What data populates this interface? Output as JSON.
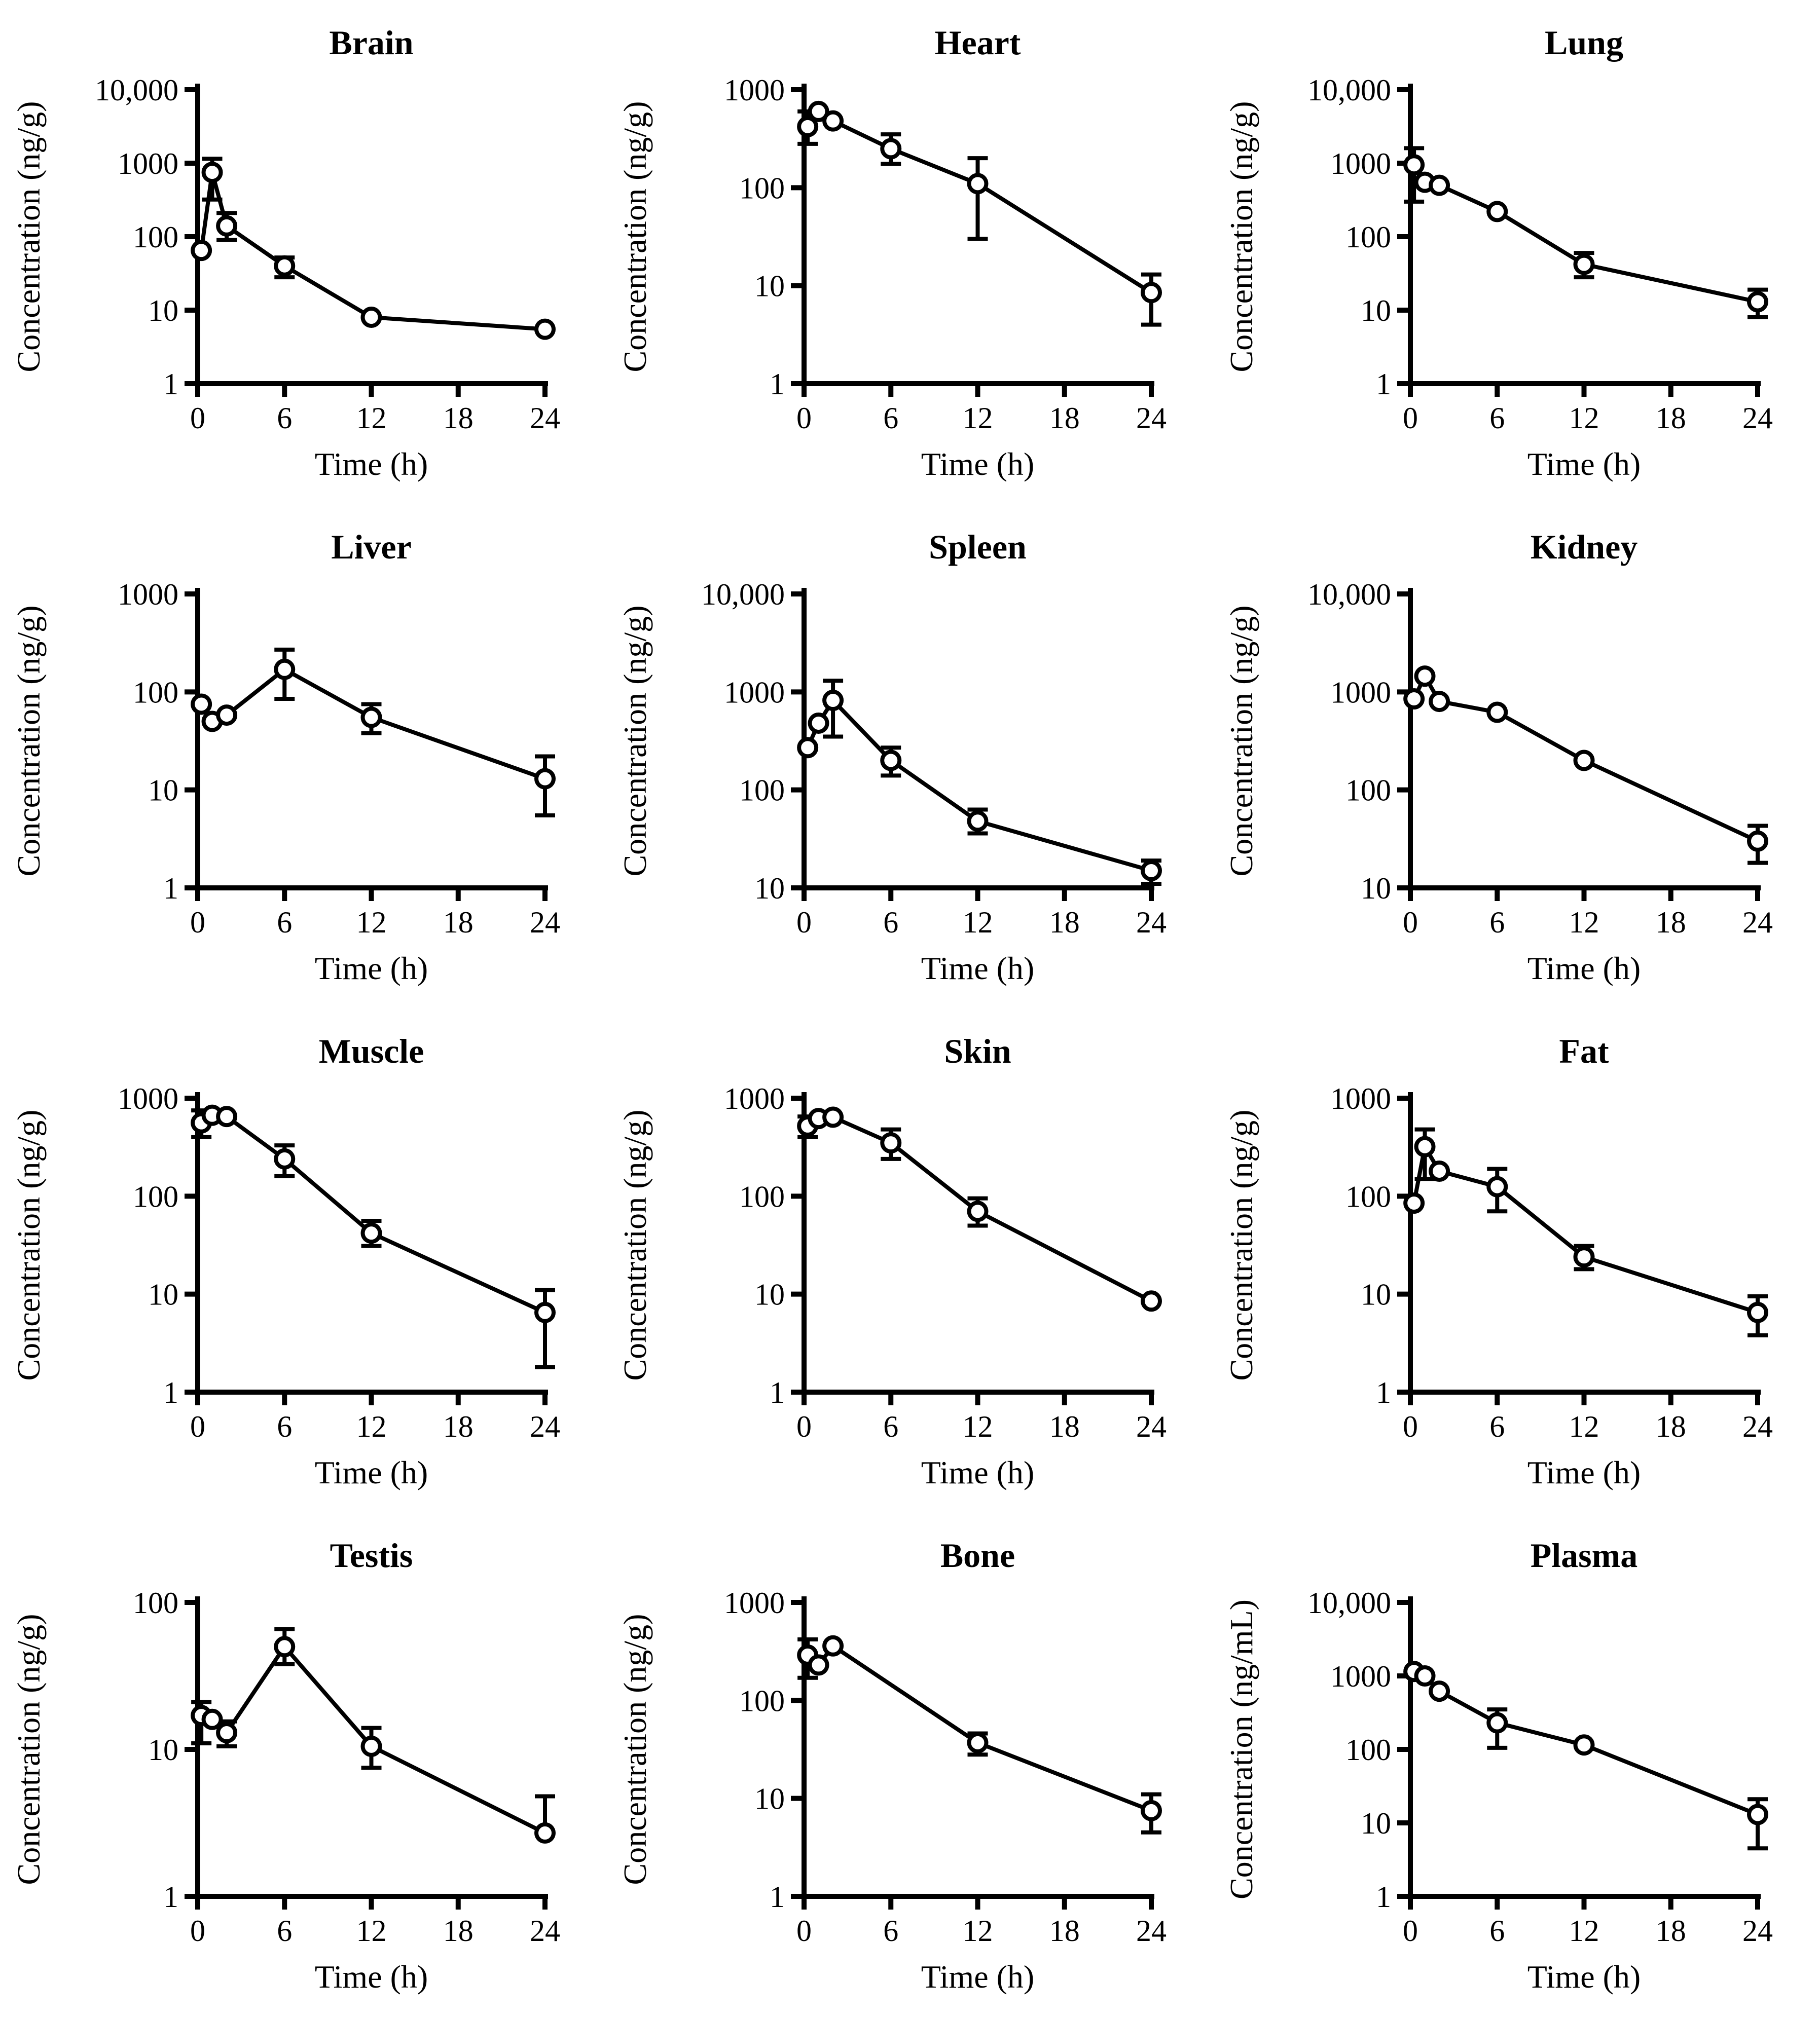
{
  "page": {
    "background": "#ffffff"
  },
  "colors": {
    "stroke": "#000000",
    "marker_fill": "#ffffff"
  },
  "chart_data": [
    {
      "type": "line",
      "title": "Brain",
      "xlabel": "Time (h)",
      "ylabel": "Concentration (ng/g)",
      "x_ticks": [
        0,
        6,
        12,
        18,
        24
      ],
      "xlim": [
        0,
        24
      ],
      "grid": false,
      "legend": "none",
      "y_tick_labels": [
        "1",
        "10",
        "100",
        "1000",
        "10,000"
      ],
      "ylim": [
        1,
        10000
      ],
      "points": [
        {
          "t": 0.25,
          "y": 65
        },
        {
          "t": 1,
          "y": 750,
          "err": [
            320,
            1150
          ]
        },
        {
          "t": 2,
          "y": 140,
          "err": [
            90,
            210
          ]
        },
        {
          "t": 6,
          "y": 40,
          "err": [
            28,
            52
          ]
        },
        {
          "t": 12,
          "y": 8
        },
        {
          "t": 24,
          "y": 5.5
        }
      ]
    },
    {
      "type": "line",
      "title": "Heart",
      "xlabel": "Time (h)",
      "ylabel": "Concentration (ng/g)",
      "x_ticks": [
        0,
        6,
        12,
        18,
        24
      ],
      "xlim": [
        0,
        24
      ],
      "grid": false,
      "legend": "none",
      "y_tick_labels": [
        "1",
        "10",
        "100",
        "1000"
      ],
      "ylim": [
        1,
        1000
      ],
      "points": [
        {
          "t": 0.25,
          "y": 420,
          "err": [
            280,
            600
          ]
        },
        {
          "t": 1,
          "y": 600
        },
        {
          "t": 2,
          "y": 480
        },
        {
          "t": 6,
          "y": 250,
          "err": [
            175,
            350
          ]
        },
        {
          "t": 12,
          "y": 110,
          "err": [
            30,
            200
          ]
        },
        {
          "t": 24,
          "y": 8.5,
          "err": [
            4,
            13
          ]
        }
      ]
    },
    {
      "type": "line",
      "title": "Lung",
      "xlabel": "Time (h)",
      "ylabel": "Concentration (ng/g)",
      "x_ticks": [
        0,
        6,
        12,
        18,
        24
      ],
      "xlim": [
        0,
        24
      ],
      "grid": false,
      "legend": "none",
      "y_tick_labels": [
        "1",
        "10",
        "100",
        "1000",
        "10,000"
      ],
      "ylim": [
        1,
        10000
      ],
      "points": [
        {
          "t": 0.25,
          "y": 950,
          "err": [
            300,
            1600
          ]
        },
        {
          "t": 1,
          "y": 550
        },
        {
          "t": 2,
          "y": 500
        },
        {
          "t": 6,
          "y": 220
        },
        {
          "t": 12,
          "y": 42,
          "err": [
            28,
            60
          ]
        },
        {
          "t": 24,
          "y": 13,
          "err": [
            8,
            19
          ]
        }
      ]
    },
    {
      "type": "line",
      "title": "Liver",
      "xlabel": "Time (h)",
      "ylabel": "Concentration (ng/g)",
      "x_ticks": [
        0,
        6,
        12,
        18,
        24
      ],
      "xlim": [
        0,
        24
      ],
      "grid": false,
      "legend": "none",
      "y_tick_labels": [
        "1",
        "10",
        "100",
        "1000"
      ],
      "ylim": [
        1,
        1000
      ],
      "points": [
        {
          "t": 0.25,
          "y": 75
        },
        {
          "t": 1,
          "y": 50
        },
        {
          "t": 2,
          "y": 58
        },
        {
          "t": 6,
          "y": 170,
          "err": [
            85,
            270
          ]
        },
        {
          "t": 12,
          "y": 55,
          "err": [
            38,
            75
          ]
        },
        {
          "t": 24,
          "y": 13,
          "err": [
            5.5,
            22
          ]
        }
      ]
    },
    {
      "type": "line",
      "title": "Spleen",
      "xlabel": "Time (h)",
      "ylabel": "Concentration (ng/g)",
      "x_ticks": [
        0,
        6,
        12,
        18,
        24
      ],
      "xlim": [
        0,
        24
      ],
      "grid": false,
      "legend": "none",
      "y_tick_labels": [
        "10",
        "100",
        "1000",
        "10,000"
      ],
      "ylim": [
        10,
        10000
      ],
      "points": [
        {
          "t": 0.25,
          "y": 270
        },
        {
          "t": 1,
          "y": 480
        },
        {
          "t": 2,
          "y": 820,
          "err": [
            350,
            1300
          ]
        },
        {
          "t": 6,
          "y": 200,
          "err": [
            140,
            270
          ]
        },
        {
          "t": 12,
          "y": 48,
          "err": [
            36,
            63
          ]
        },
        {
          "t": 24,
          "y": 15,
          "err": [
            11,
            19
          ]
        }
      ]
    },
    {
      "type": "line",
      "title": "Kidney",
      "xlabel": "Time (h)",
      "ylabel": "Concentration (ng/g)",
      "x_ticks": [
        0,
        6,
        12,
        18,
        24
      ],
      "xlim": [
        0,
        24
      ],
      "grid": false,
      "legend": "none",
      "y_tick_labels": [
        "10",
        "100",
        "1000",
        "10,000"
      ],
      "ylim": [
        10,
        10000
      ],
      "points": [
        {
          "t": 0.25,
          "y": 850
        },
        {
          "t": 1,
          "y": 1450
        },
        {
          "t": 2,
          "y": 800
        },
        {
          "t": 6,
          "y": 620
        },
        {
          "t": 12,
          "y": 200
        },
        {
          "t": 24,
          "y": 30,
          "err": [
            18,
            43
          ]
        }
      ]
    },
    {
      "type": "line",
      "title": "Muscle",
      "xlabel": "Time (h)",
      "ylabel": "Concentration (ng/g)",
      "x_ticks": [
        0,
        6,
        12,
        18,
        24
      ],
      "xlim": [
        0,
        24
      ],
      "grid": false,
      "legend": "none",
      "y_tick_labels": [
        "1",
        "10",
        "100",
        "1000"
      ],
      "ylim": [
        1,
        1000
      ],
      "points": [
        {
          "t": 0.25,
          "y": 560,
          "err": [
            400,
            750
          ]
        },
        {
          "t": 1,
          "y": 670
        },
        {
          "t": 2,
          "y": 650
        },
        {
          "t": 6,
          "y": 240,
          "err": [
            160,
            330
          ]
        },
        {
          "t": 12,
          "y": 42,
          "err": [
            31,
            56
          ]
        },
        {
          "t": 24,
          "y": 6.5,
          "err": [
            1.8,
            11
          ]
        }
      ]
    },
    {
      "type": "line",
      "title": "Skin",
      "xlabel": "Time (h)",
      "ylabel": "Concentration (ng/g)",
      "x_ticks": [
        0,
        6,
        12,
        18,
        24
      ],
      "xlim": [
        0,
        24
      ],
      "grid": false,
      "legend": "none",
      "y_tick_labels": [
        "1",
        "10",
        "100",
        "1000"
      ],
      "ylim": [
        1,
        1000
      ],
      "points": [
        {
          "t": 0.25,
          "y": 520,
          "err": [
            400,
            650
          ]
        },
        {
          "t": 1,
          "y": 620
        },
        {
          "t": 2,
          "y": 640
        },
        {
          "t": 6,
          "y": 350,
          "err": [
            240,
            480
          ]
        },
        {
          "t": 12,
          "y": 70,
          "err": [
            50,
            95
          ]
        },
        {
          "t": 24,
          "y": 8.5
        }
      ]
    },
    {
      "type": "line",
      "title": "Fat",
      "xlabel": "Time (h)",
      "ylabel": "Concentration (ng/g)",
      "x_ticks": [
        0,
        6,
        12,
        18,
        24
      ],
      "xlim": [
        0,
        24
      ],
      "grid": false,
      "legend": "none",
      "y_tick_labels": [
        "1",
        "10",
        "100",
        "1000"
      ],
      "ylim": [
        1,
        1000
      ],
      "points": [
        {
          "t": 0.25,
          "y": 85
        },
        {
          "t": 1,
          "y": 320,
          "err": [
            150,
            480
          ]
        },
        {
          "t": 2,
          "y": 180
        },
        {
          "t": 6,
          "y": 125,
          "err": [
            70,
            190
          ]
        },
        {
          "t": 12,
          "y": 24,
          "err": [
            18,
            31
          ]
        },
        {
          "t": 24,
          "y": 6.5,
          "err": [
            3.8,
            9.5
          ]
        }
      ]
    },
    {
      "type": "line",
      "title": "Testis",
      "xlabel": "Time (h)",
      "ylabel": "Concentration (ng/g)",
      "x_ticks": [
        0,
        6,
        12,
        18,
        24
      ],
      "xlim": [
        0,
        24
      ],
      "grid": false,
      "legend": "none",
      "y_tick_labels": [
        "1",
        "10",
        "100"
      ],
      "ylim": [
        1,
        100
      ],
      "points": [
        {
          "t": 0.25,
          "y": 17,
          "err": [
            11,
            21
          ]
        },
        {
          "t": 1,
          "y": 16
        },
        {
          "t": 2,
          "y": 13,
          "err": [
            10.5,
            15.5
          ]
        },
        {
          "t": 6,
          "y": 50,
          "err": [
            38,
            66
          ]
        },
        {
          "t": 12,
          "y": 10.5,
          "err": [
            7.5,
            14
          ]
        },
        {
          "t": 24,
          "y": 2.7,
          "err": [
            2.7,
            4.8
          ]
        }
      ]
    },
    {
      "type": "line",
      "title": "Bone",
      "xlabel": "Time (h)",
      "ylabel": "Concentration (ng/g)",
      "x_ticks": [
        0,
        6,
        12,
        18,
        24
      ],
      "xlim": [
        0,
        24
      ],
      "grid": false,
      "legend": "none",
      "y_tick_labels": [
        "1",
        "10",
        "100",
        "1000"
      ],
      "ylim": [
        1,
        1000
      ],
      "points": [
        {
          "t": 0.25,
          "y": 290,
          "err": [
            170,
            420
          ]
        },
        {
          "t": 1,
          "y": 230
        },
        {
          "t": 2,
          "y": 360
        },
        {
          "t": 12,
          "y": 37,
          "err": [
            28,
            46
          ]
        },
        {
          "t": 24,
          "y": 7.5,
          "err": [
            4.5,
            11
          ]
        }
      ]
    },
    {
      "type": "line",
      "title": "Plasma",
      "xlabel": "Time (h)",
      "ylabel": "Concentration (ng/mL)",
      "x_ticks": [
        0,
        6,
        12,
        18,
        24
      ],
      "xlim": [
        0,
        24
      ],
      "grid": false,
      "legend": "none",
      "y_tick_labels": [
        "1",
        "10",
        "100",
        "1000",
        "10,000"
      ],
      "ylim": [
        1,
        10000
      ],
      "points": [
        {
          "t": 0.25,
          "y": 1150
        },
        {
          "t": 1,
          "y": 1000
        },
        {
          "t": 2,
          "y": 620
        },
        {
          "t": 6,
          "y": 230,
          "err": [
            105,
            350
          ]
        },
        {
          "t": 12,
          "y": 115
        },
        {
          "t": 24,
          "y": 13,
          "err": [
            4.5,
            21
          ]
        }
      ]
    }
  ]
}
